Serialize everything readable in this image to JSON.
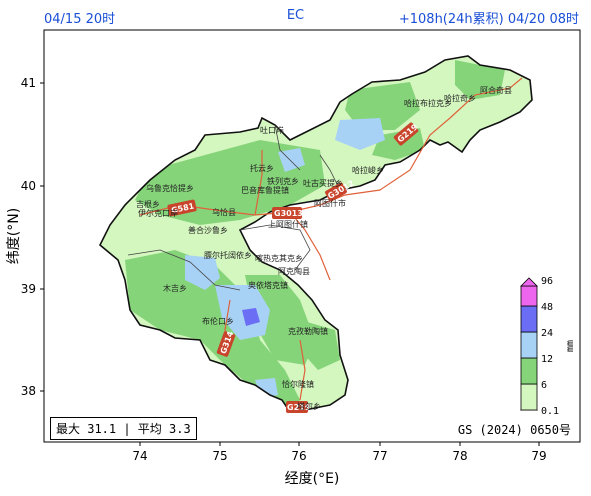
{
  "header": {
    "init_time": "04/15 20时",
    "model": "EC",
    "lead": "+108h(24h累积) 04/20 08时"
  },
  "axes": {
    "xlabel": "经度(°E)",
    "ylabel": "纬度(°N)",
    "xticks": [
      "74",
      "75",
      "76",
      "77",
      "78",
      "79"
    ],
    "yticks": [
      "41",
      "40",
      "39",
      "38"
    ]
  },
  "legend": {
    "unit": "mm",
    "levels": [
      "0.1",
      "6",
      "12",
      "24",
      "48",
      "96"
    ],
    "colors": [
      "#d4f7c0",
      "#86d47a",
      "#a8d2f5",
      "#6b6ef5",
      "#ee66ee"
    ]
  },
  "stats": "最大 31.1 | 平均 3.3",
  "map_approval": "GS (2024) 0650号",
  "places": {
    "tuzhukou": "吐口岸",
    "aheqi": "阿合奇县",
    "halabula": "哈拉布拉克乡",
    "hala": "哈拉奇乡",
    "tuoyun": "托云乡",
    "tiefuke": "铁列克乡",
    "tugumaiti": "吐古买提乡",
    "halajun": "哈拉峻乡",
    "wuluke": "乌鲁克恰提乡",
    "bage": "巴音库鲁提镇",
    "jigen": "吉根乡",
    "yikou": "伊尔克口岸",
    "wuqia": "乌恰县",
    "atushi": "阿图什市",
    "shanga": "上阿图什镇",
    "shanhe": "善合沙鲁乡",
    "yiertuo": "膘尔托阔依乡",
    "kashen": "喀热克其克乡",
    "ake": "阿克陶县",
    "muji": "木吉乡",
    "aoyitake": "奥依塔克镇",
    "buluokou": "布伦口乡",
    "kezile": "克孜勒陶镇",
    "qiaerlong": "恰尔隆镇",
    "tashi": "塔尔乡"
  },
  "roads": [
    "G581",
    "G3013",
    "G3012",
    "G219",
    "G314",
    "G219"
  ]
}
